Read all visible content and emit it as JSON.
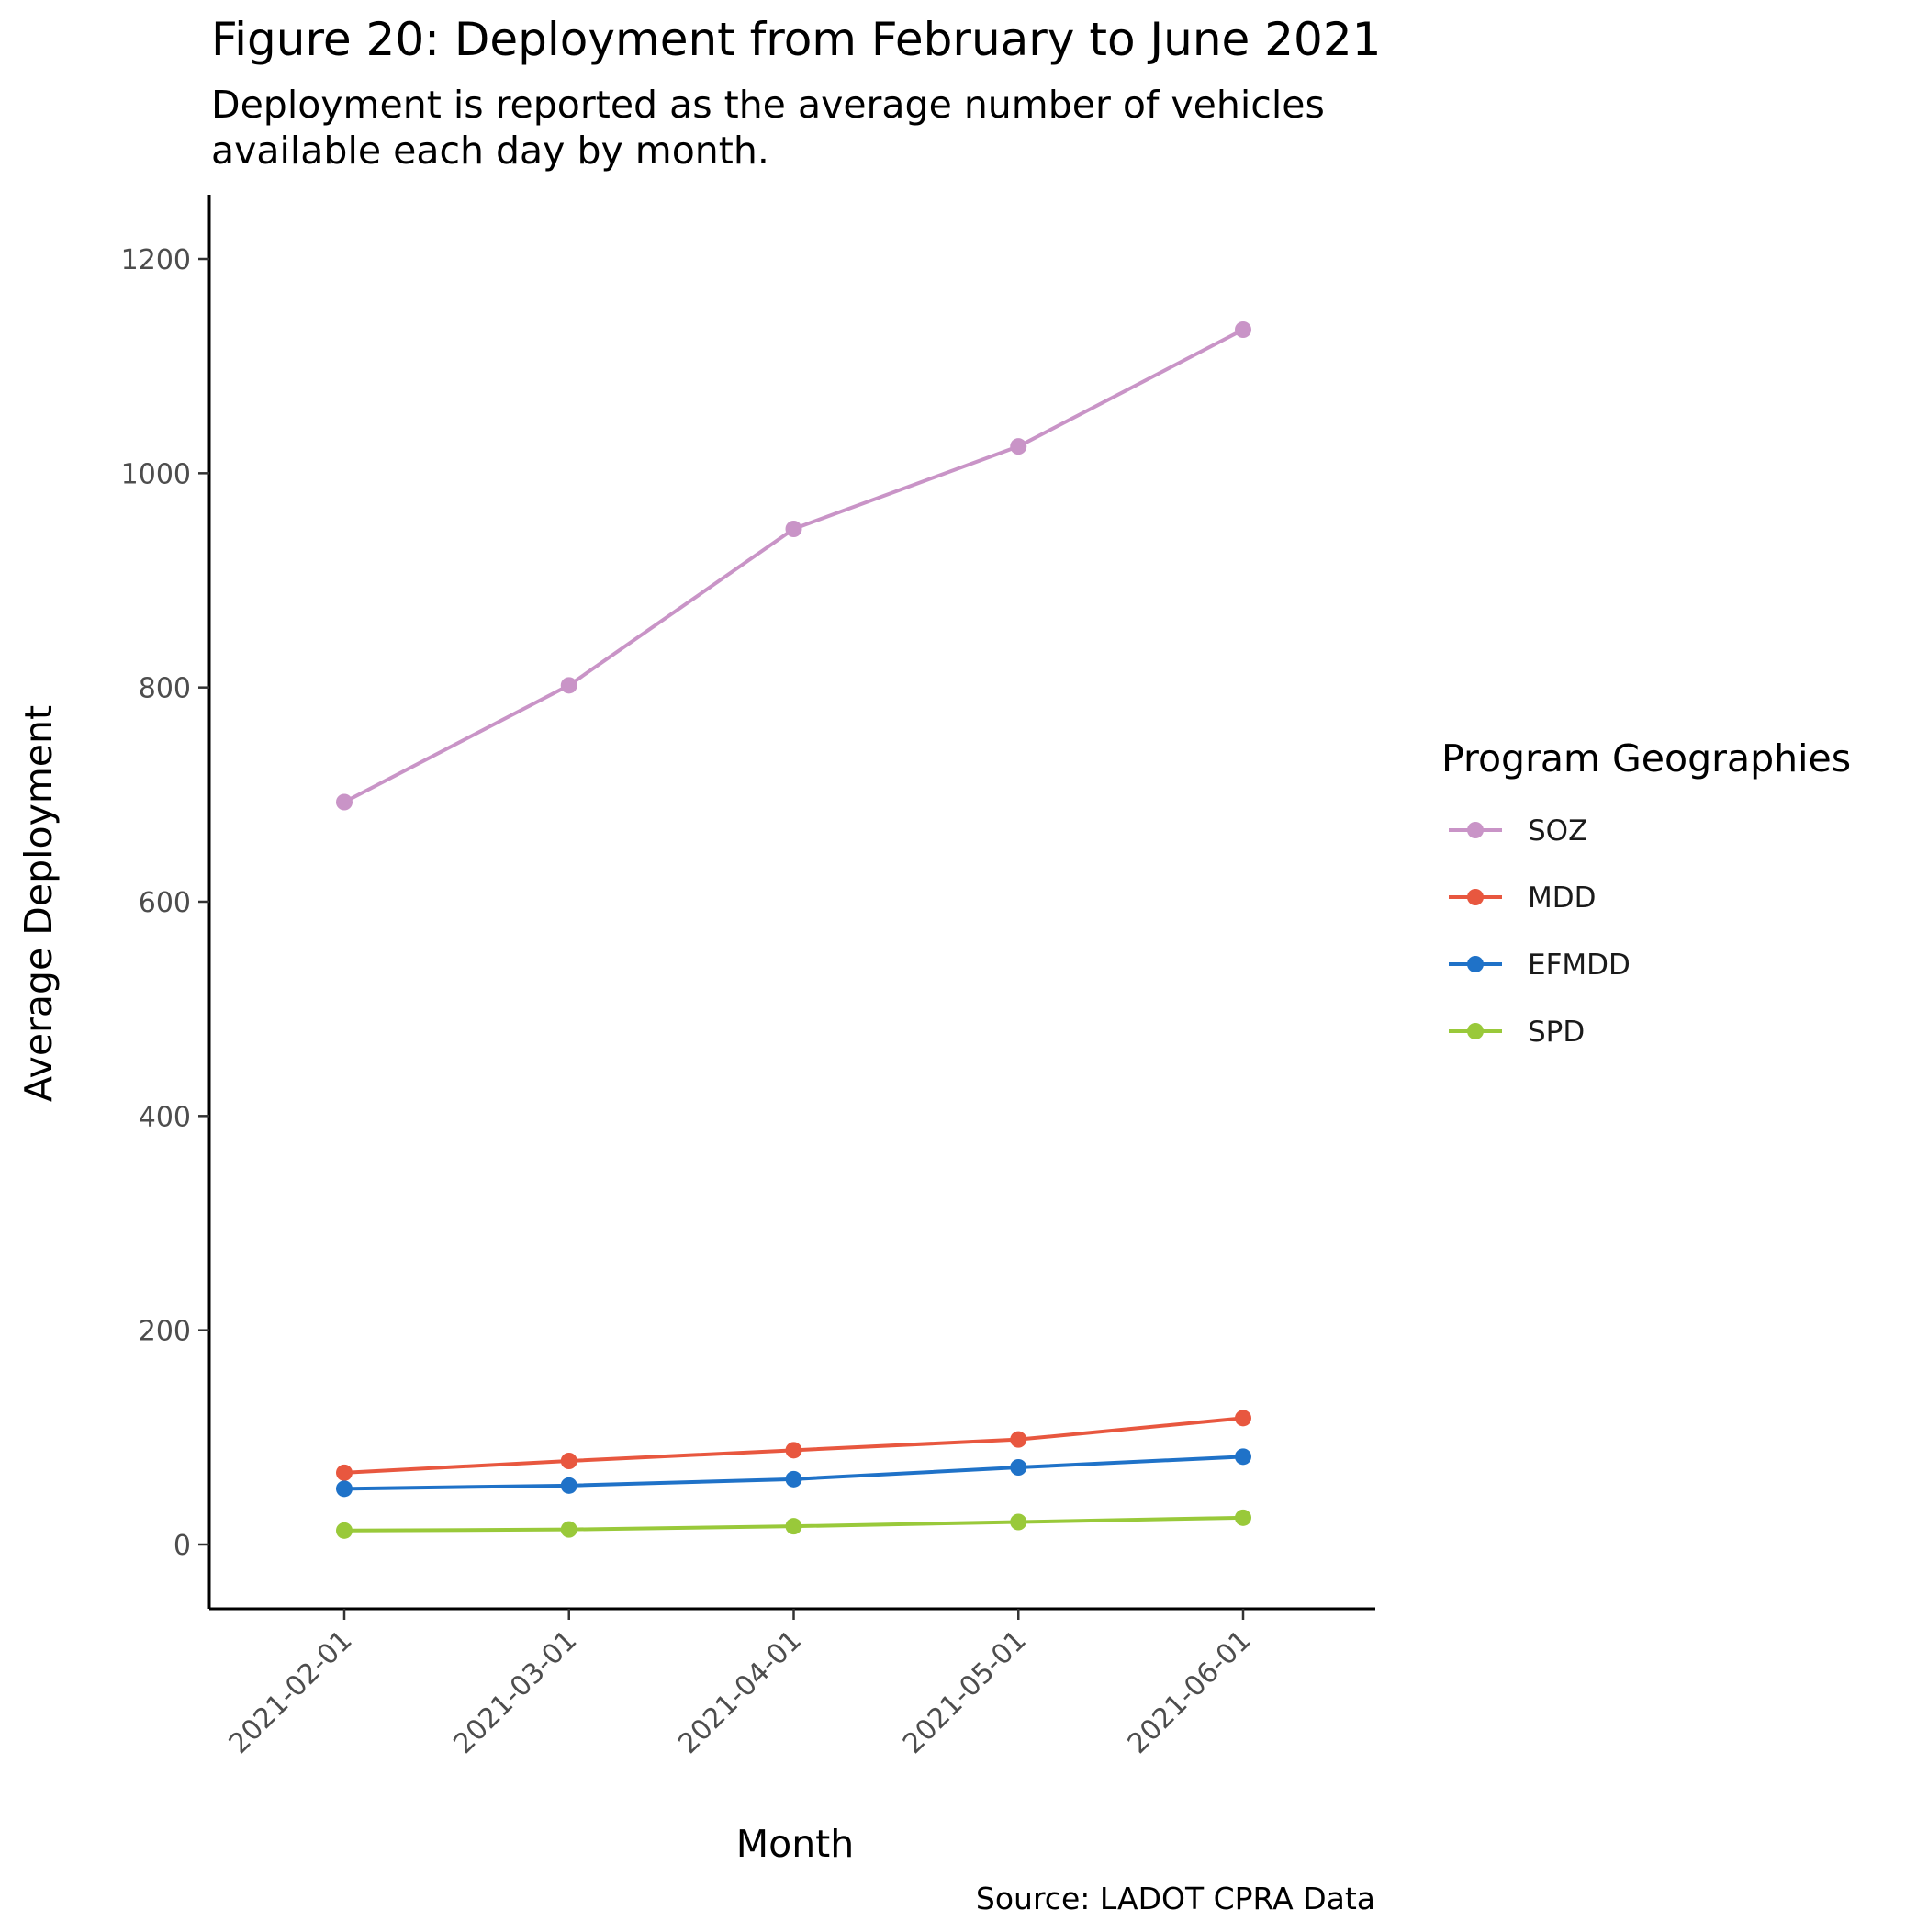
{
  "title": "Figure 20: Deployment from February to June 2021",
  "subtitle": [
    "Deployment is reported as the average number of vehicles",
    "available each day by month."
  ],
  "caption": "Source: LADOT CPRA Data",
  "legend": {
    "title": "Program Geographies",
    "placement": "right"
  },
  "chart_data": {
    "type": "line",
    "title": "Figure 20: Deployment from February to June 2021",
    "subtitle": "Deployment is reported as the average number of vehicles available each day by month.",
    "xlabel": "Month",
    "ylabel": "Average Deployment",
    "x": [
      "2021-02-01",
      "2021-03-01",
      "2021-04-01",
      "2021-05-01",
      "2021-06-01"
    ],
    "ylim": [
      -60,
      1260
    ],
    "yticks": [
      0,
      200,
      400,
      600,
      800,
      1000,
      1200
    ],
    "grid": false,
    "legend_placement": "right",
    "series": [
      {
        "name": "SOZ",
        "color": "#c994c7",
        "values": [
          693,
          802,
          948,
          1025,
          1134
        ]
      },
      {
        "name": "MDD",
        "color": "#e8573f",
        "values": [
          67,
          78,
          88,
          98,
          118
        ]
      },
      {
        "name": "EFMDD",
        "color": "#1f72c8",
        "values": [
          52,
          55,
          61,
          72,
          82
        ]
      },
      {
        "name": "SPD",
        "color": "#99c93a",
        "values": [
          13,
          14,
          17,
          21,
          25
        ]
      }
    ]
  }
}
